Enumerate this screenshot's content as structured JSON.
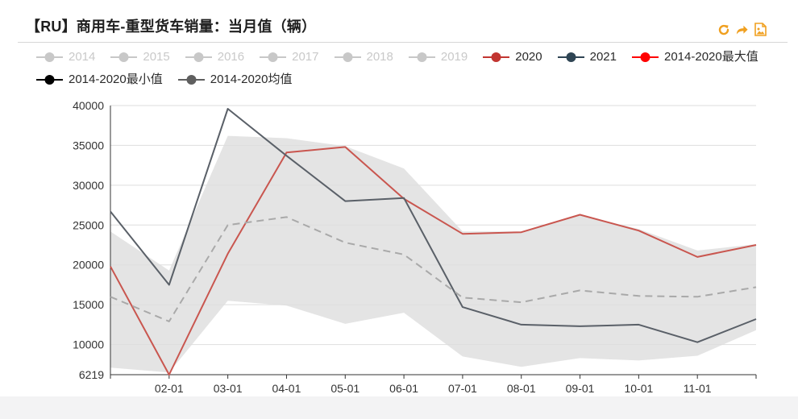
{
  "header": {
    "title": "【RU】商用车-重型货车销量：当月值（辆）"
  },
  "toolbar": {
    "buttons": [
      {
        "icon": "refresh-icon"
      },
      {
        "icon": "share-icon"
      },
      {
        "icon": "save-image-icon"
      }
    ],
    "icon_color": "#f0a020"
  },
  "legend": {
    "rows": [
      [
        {
          "label": "2014",
          "visible": false,
          "color": "#c8c8c8"
        },
        {
          "label": "2015",
          "visible": false,
          "color": "#c8c8c8"
        },
        {
          "label": "2016",
          "visible": false,
          "color": "#c8c8c8"
        },
        {
          "label": "2017",
          "visible": false,
          "color": "#c8c8c8"
        },
        {
          "label": "2018",
          "visible": false,
          "color": "#c8c8c8"
        },
        {
          "label": "2019",
          "visible": false,
          "color": "#c8c8c8"
        },
        {
          "label": "2020",
          "visible": true,
          "color": "#c23531"
        },
        {
          "label": "2021",
          "visible": true,
          "color": "#2f4554"
        },
        {
          "label": "2014-2020最大值",
          "visible": true,
          "color": "#ff0000"
        }
      ],
      [
        {
          "label": "2014-2020最小值",
          "visible": true,
          "color": "#000000"
        },
        {
          "label": "2014-2020均值",
          "visible": true,
          "color": "#5f5f5f"
        }
      ]
    ]
  },
  "chart_data": {
    "type": "line",
    "x_ticks": [
      "02-01",
      "03-01",
      "04-01",
      "05-01",
      "06-01",
      "07-01",
      "08-01",
      "09-01",
      "10-01",
      "11-01"
    ],
    "x_domain": [
      "01-01",
      "12-01"
    ],
    "y_ticks": [
      6219,
      10000,
      15000,
      20000,
      25000,
      30000,
      35000,
      40000
    ],
    "ylim": [
      6219,
      40000
    ],
    "grid": true,
    "range_band": {
      "color": "#e4e4e4",
      "upper": [
        24200,
        19300,
        36200,
        35900,
        34900,
        32100,
        24200,
        24200,
        26300,
        24500,
        21800,
        22600
      ],
      "lower": [
        7100,
        6500,
        15500,
        14900,
        12600,
        14000,
        8500,
        7200,
        8300,
        8000,
        8600,
        11800
      ]
    },
    "series": [
      {
        "name": "2020",
        "color": "#c9564f",
        "style": "solid",
        "values": [
          19800,
          6219,
          21400,
          34100,
          34800,
          28300,
          23900,
          24100,
          26300,
          24300,
          21000,
          22500
        ]
      },
      {
        "name": "2021",
        "color": "#5a6068",
        "style": "solid",
        "values": [
          26700,
          17500,
          39600,
          33700,
          28000,
          28400,
          14700,
          12500,
          12300,
          12500,
          10300,
          13200
        ]
      },
      {
        "name": "2014-2020均值",
        "color": "#a9a9a9",
        "style": "dashed",
        "values": [
          16000,
          12900,
          25000,
          26000,
          22800,
          21300,
          15900,
          15300,
          16800,
          16100,
          16000,
          17200
        ]
      }
    ]
  }
}
